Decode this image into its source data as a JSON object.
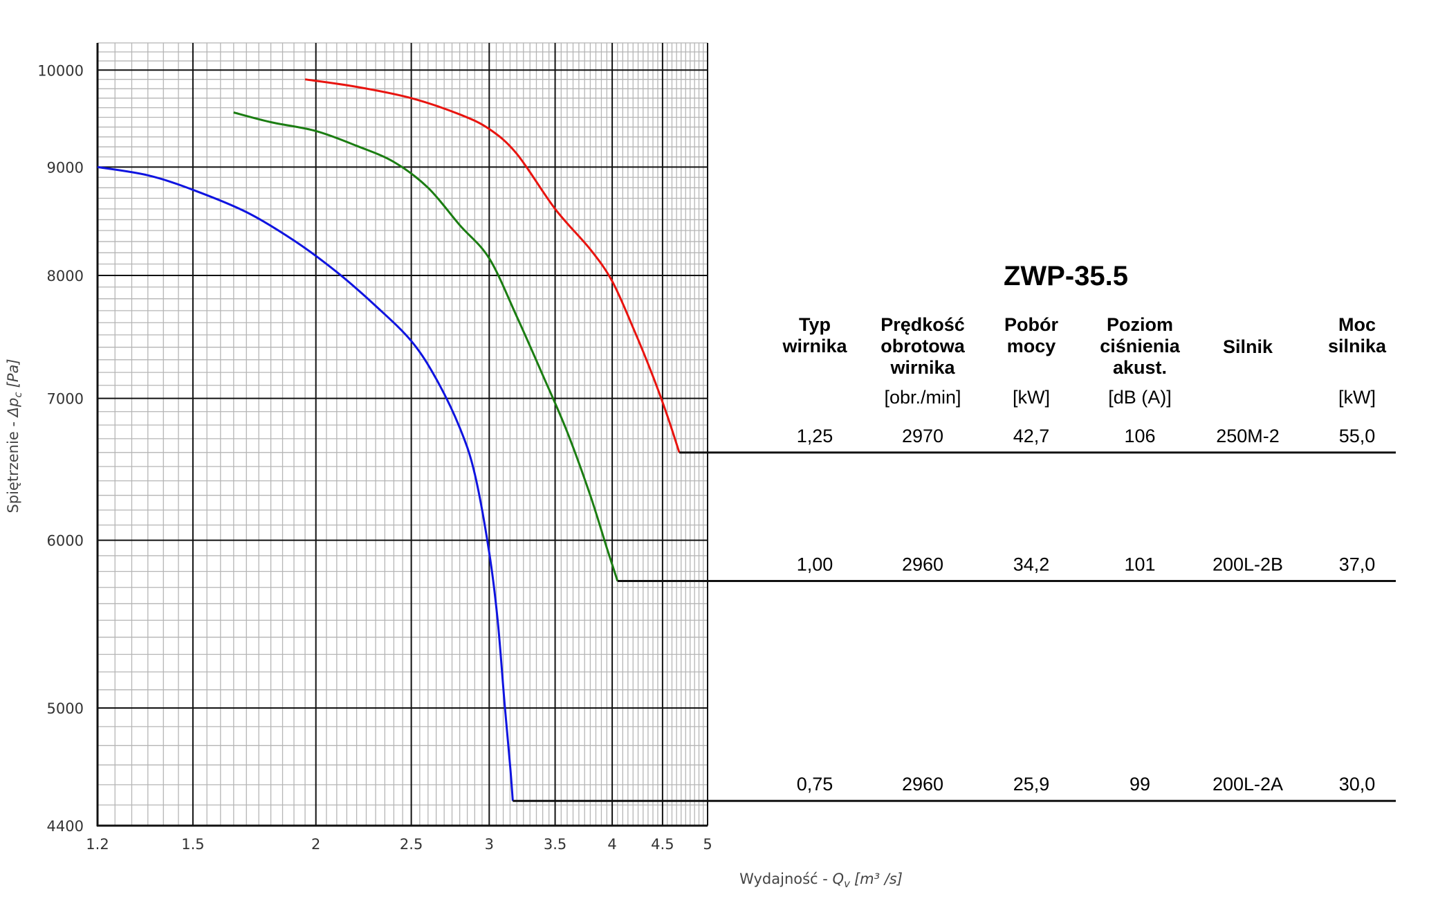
{
  "chart_data": {
    "type": "line",
    "title": "ZWP-35.5",
    "xlabel": "Wydajność - Q_v [m³/s]",
    "xlabel_prefix": "Wydajność - ",
    "xlabel_symbol": "Q",
    "xlabel_sub": "v",
    "xlabel_unit": "[m³ /s]",
    "ylabel": "Spiętrzenie - Δp_c [Pa]",
    "ylabel_prefix": "Spiętrzenie - ",
    "ylabel_symbol": "Δp",
    "ylabel_sub": "c",
    "ylabel_unit": "[Pa]",
    "x_scale": "log",
    "y_scale": "log",
    "xlim": [
      1.2,
      5
    ],
    "ylim": [
      4400,
      10300
    ],
    "x_ticks": [
      "1.2",
      "1.5",
      "2",
      "2.5",
      "3",
      "3.5",
      "4",
      "4.5",
      "5"
    ],
    "y_ticks": [
      "4400",
      "5000",
      "6000",
      "7000",
      "8000",
      "9000",
      "10000"
    ],
    "grid": true,
    "legend": "none",
    "series": [
      {
        "color": "#e8140f",
        "end_y": 6600,
        "points": [
          [
            1.95,
            9900
          ],
          [
            2.2,
            9820
          ],
          [
            2.5,
            9700
          ],
          [
            2.8,
            9530
          ],
          [
            3.0,
            9380
          ],
          [
            3.2,
            9130
          ],
          [
            3.5,
            8600
          ],
          [
            3.8,
            8230
          ],
          [
            4.0,
            7950
          ],
          [
            4.2,
            7560
          ],
          [
            4.4,
            7170
          ],
          [
            4.55,
            6870
          ],
          [
            4.68,
            6600
          ]
        ]
      },
      {
        "color": "#1b7d12",
        "end_y": 5740,
        "points": [
          [
            1.65,
            9550
          ],
          [
            1.8,
            9450
          ],
          [
            2.0,
            9360
          ],
          [
            2.2,
            9210
          ],
          [
            2.4,
            9050
          ],
          [
            2.6,
            8800
          ],
          [
            2.8,
            8450
          ],
          [
            3.0,
            8150
          ],
          [
            3.2,
            7650
          ],
          [
            3.4,
            7180
          ],
          [
            3.6,
            6750
          ],
          [
            3.8,
            6300
          ],
          [
            3.95,
            5950
          ],
          [
            4.05,
            5740
          ]
        ]
      },
      {
        "color": "#0f14e0",
        "end_y": 4520,
        "points": [
          [
            1.2,
            9000
          ],
          [
            1.35,
            8920
          ],
          [
            1.5,
            8780
          ],
          [
            1.7,
            8570
          ],
          [
            1.9,
            8310
          ],
          [
            2.1,
            8030
          ],
          [
            2.3,
            7740
          ],
          [
            2.5,
            7450
          ],
          [
            2.65,
            7150
          ],
          [
            2.8,
            6780
          ],
          [
            2.9,
            6450
          ],
          [
            3.0,
            5920
          ],
          [
            3.06,
            5500
          ],
          [
            3.11,
            5020
          ],
          [
            3.15,
            4700
          ],
          [
            3.17,
            4520
          ]
        ]
      }
    ]
  },
  "table": {
    "title": "ZWP-35.5",
    "columns": [
      {
        "header": [
          "Typ",
          "wirnika"
        ],
        "unit": ""
      },
      {
        "header": [
          "Prędkość",
          "obrotowa",
          "wirnika"
        ],
        "unit": "[obr./min]"
      },
      {
        "header": [
          "Pobór",
          "mocy"
        ],
        "unit": "[kW]"
      },
      {
        "header": [
          "Poziom",
          "ciśnienia",
          "akust."
        ],
        "unit": "[dB (A)]"
      },
      {
        "header": [
          "Silnik"
        ],
        "unit": ""
      },
      {
        "header": [
          "Moc",
          "silnika"
        ],
        "unit": "[kW]"
      }
    ],
    "rows": [
      [
        "1,25",
        "2970",
        "42,7",
        "106",
        "250M-2",
        "55,0"
      ],
      [
        "1,00",
        "2960",
        "34,2",
        "101",
        "200L-2B",
        "37,0"
      ],
      [
        "0,75",
        "2960",
        "25,9",
        "99",
        "200L-2A",
        "30,0"
      ]
    ]
  }
}
